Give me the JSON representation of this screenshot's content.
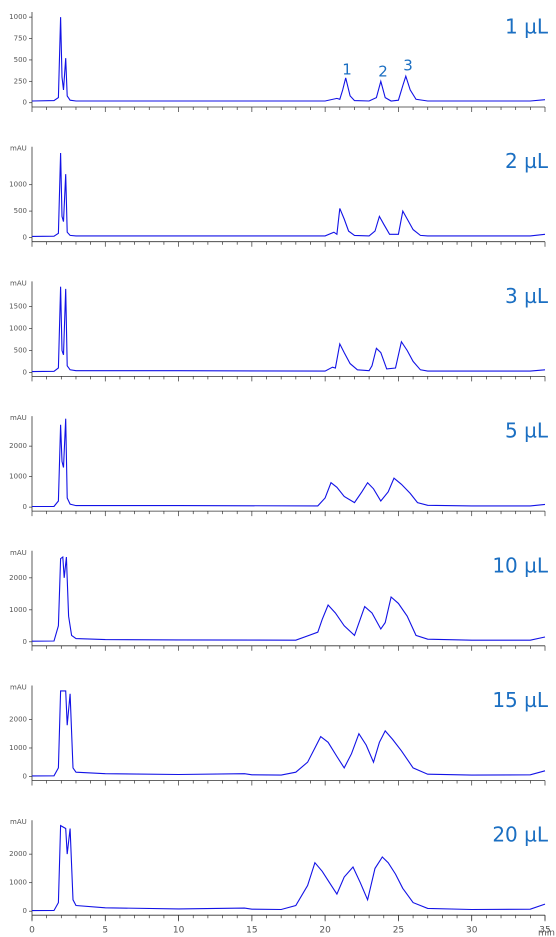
{
  "chart_data": [
    {
      "type": "line",
      "title": "1 µL",
      "xlim": [
        0,
        35
      ],
      "ylim": [
        -50,
        1060
      ],
      "yticks": [
        0,
        250,
        500,
        750,
        1000
      ],
      "annotations": [
        "1",
        "2",
        "3"
      ],
      "x": [
        0,
        1.5,
        1.8,
        1.95,
        2.05,
        2.15,
        2.3,
        2.4,
        2.6,
        3,
        10,
        20,
        20.8,
        21.0,
        21.2,
        21.4,
        21.7,
        22,
        23,
        23.5,
        23.8,
        24.1,
        24.5,
        25,
        25.3,
        25.5,
        25.8,
        26.2,
        27,
        34,
        35
      ],
      "series": [
        {
          "color": "#1212e6",
          "values": [
            20,
            25,
            60,
            1000,
            300,
            150,
            520,
            80,
            30,
            20,
            20,
            20,
            50,
            40,
            150,
            290,
            80,
            25,
            20,
            60,
            250,
            60,
            20,
            30,
            200,
            310,
            150,
            40,
            20,
            20,
            35
          ]
        }
      ]
    },
    {
      "type": "line",
      "title": "2 µL",
      "ylabel": "mAU",
      "xlim": [
        0,
        35
      ],
      "ylim": [
        -80,
        1720
      ],
      "yticks": [
        0,
        500,
        1000
      ],
      "x": [
        0,
        1.5,
        1.8,
        1.95,
        2.05,
        2.15,
        2.3,
        2.4,
        2.6,
        3,
        10,
        20,
        20.6,
        20.8,
        21.0,
        21.3,
        21.6,
        22,
        23,
        23.4,
        23.7,
        24.0,
        24.4,
        25,
        25.3,
        25.6,
        26,
        26.5,
        27,
        34,
        35
      ],
      "series": [
        {
          "color": "#1212e6",
          "values": [
            20,
            25,
            80,
            1600,
            400,
            300,
            1200,
            100,
            40,
            30,
            30,
            30,
            100,
            60,
            550,
            350,
            120,
            40,
            30,
            120,
            400,
            250,
            60,
            60,
            500,
            350,
            150,
            40,
            30,
            30,
            60
          ]
        }
      ]
    },
    {
      "type": "line",
      "title": "3 µL",
      "ylabel": "mAU",
      "xlim": [
        0,
        35
      ],
      "ylim": [
        -90,
        2070
      ],
      "yticks": [
        0,
        500,
        1000,
        1500
      ],
      "x": [
        0,
        1.5,
        1.8,
        1.95,
        2.05,
        2.15,
        2.3,
        2.4,
        2.6,
        3,
        10,
        20,
        20.5,
        20.7,
        21.0,
        21.3,
        21.7,
        22.2,
        23,
        23.2,
        23.5,
        23.8,
        24.2,
        24.8,
        25.2,
        25.6,
        26,
        26.5,
        27,
        34,
        35
      ],
      "series": [
        {
          "color": "#1212e6",
          "values": [
            20,
            25,
            100,
            1950,
            500,
            400,
            1900,
            150,
            60,
            40,
            40,
            30,
            120,
            100,
            650,
            450,
            200,
            60,
            40,
            150,
            550,
            450,
            80,
            100,
            700,
            500,
            250,
            60,
            30,
            30,
            60
          ]
        }
      ]
    },
    {
      "type": "line",
      "title": "5 µL",
      "ylabel": "mAU",
      "xlim": [
        0,
        35
      ],
      "ylim": [
        -130,
        2985
      ],
      "yticks": [
        0,
        1000,
        2000
      ],
      "x": [
        0,
        1.5,
        1.8,
        1.95,
        2.05,
        2.15,
        2.3,
        2.4,
        2.6,
        3,
        10,
        19.5,
        20,
        20.4,
        20.8,
        21.3,
        22,
        22.5,
        22.9,
        23.3,
        23.8,
        24.3,
        24.7,
        25.2,
        25.8,
        26.3,
        27,
        30,
        34,
        35
      ],
      "series": [
        {
          "color": "#1212e6",
          "values": [
            20,
            25,
            200,
            2700,
            1500,
            1300,
            2900,
            300,
            100,
            50,
            50,
            40,
            300,
            800,
            650,
            350,
            150,
            500,
            800,
            600,
            200,
            500,
            950,
            750,
            450,
            150,
            60,
            40,
            40,
            90
          ]
        }
      ]
    },
    {
      "type": "line",
      "title": "10 µL",
      "ylabel": "mAU",
      "xlim": [
        0,
        35
      ],
      "ylim": [
        -125,
        2845
      ],
      "yticks": [
        0,
        1000,
        2000
      ],
      "x": [
        0,
        1.5,
        1.8,
        1.95,
        2.1,
        2.2,
        2.35,
        2.5,
        2.7,
        3,
        5,
        10,
        18,
        19.5,
        19.8,
        20.2,
        20.7,
        21.3,
        22,
        22.7,
        23.2,
        23.8,
        24.1,
        24.5,
        25,
        25.6,
        26.2,
        27,
        30,
        34,
        35
      ],
      "series": [
        {
          "color": "#1212e6",
          "values": [
            20,
            25,
            500,
            2600,
            2650,
            2000,
            2650,
            800,
            200,
            100,
            70,
            60,
            50,
            300,
            700,
            1150,
            900,
            500,
            200,
            1100,
            900,
            400,
            600,
            1400,
            1200,
            800,
            200,
            80,
            50,
            50,
            150
          ]
        }
      ]
    },
    {
      "type": "line",
      "title": "15 µL",
      "ylabel": "mAU",
      "xlim": [
        0,
        35
      ],
      "ylim": [
        -140,
        3190
      ],
      "yticks": [
        0,
        1000,
        2000
      ],
      "x": [
        0,
        1.5,
        1.8,
        1.95,
        2.3,
        2.4,
        2.6,
        2.8,
        3,
        5,
        10,
        14.5,
        15,
        17,
        18,
        18.8,
        19.3,
        19.7,
        20.2,
        20.8,
        21.3,
        21.8,
        22.3,
        22.8,
        23.3,
        23.7,
        24.1,
        24.6,
        25.2,
        26,
        27,
        30,
        34,
        35
      ],
      "series": [
        {
          "color": "#1212e6",
          "values": [
            20,
            25,
            300,
            3000,
            3000,
            1800,
            2900,
            300,
            150,
            100,
            70,
            100,
            60,
            50,
            150,
            500,
            1000,
            1400,
            1200,
            700,
            300,
            800,
            1500,
            1100,
            500,
            1200,
            1600,
            1300,
            900,
            300,
            80,
            50,
            60,
            200
          ]
        }
      ]
    },
    {
      "type": "line",
      "title": "20 µL",
      "ylabel": "mAU",
      "xlabel": "min",
      "xlim": [
        0,
        35
      ],
      "ylim": [
        -140,
        3190
      ],
      "yticks": [
        0,
        1000,
        2000
      ],
      "xticks": [
        0,
        5,
        10,
        15,
        20,
        25,
        30,
        35
      ],
      "x": [
        0,
        1.5,
        1.8,
        1.95,
        2.3,
        2.4,
        2.6,
        2.8,
        3,
        5,
        10,
        14.5,
        15,
        17,
        18,
        18.8,
        19.3,
        19.8,
        20.3,
        20.8,
        21.3,
        21.9,
        22.4,
        22.9,
        23.4,
        23.9,
        24.3,
        24.8,
        25.3,
        26,
        27,
        30,
        34,
        35
      ],
      "series": [
        {
          "color": "#1212e6",
          "values": [
            20,
            25,
            300,
            3000,
            2900,
            2000,
            2900,
            400,
            200,
            120,
            80,
            110,
            70,
            60,
            200,
            900,
            1700,
            1400,
            1000,
            600,
            1200,
            1550,
            1000,
            400,
            1500,
            1900,
            1700,
            1300,
            800,
            300,
            100,
            60,
            70,
            250
          ]
        }
      ]
    }
  ]
}
